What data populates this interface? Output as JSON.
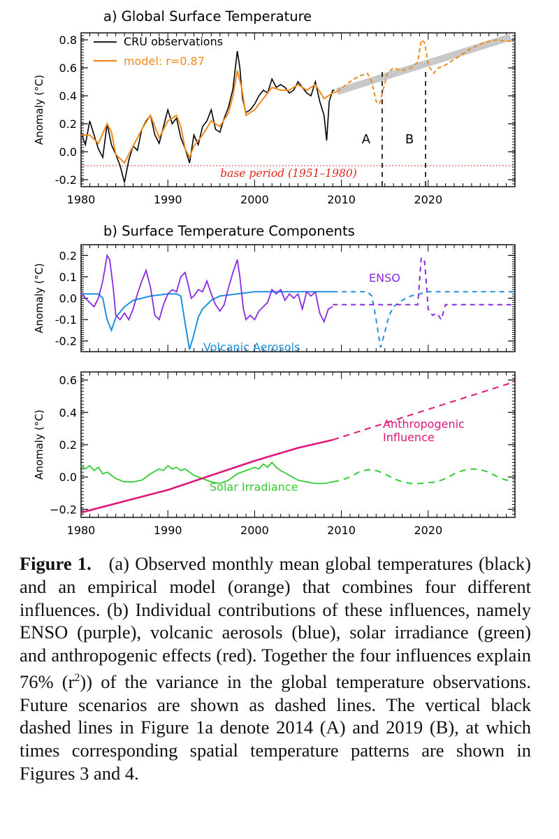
{
  "chart_data": [
    {
      "type": "line",
      "title": "a) Global Surface Temperature",
      "ylabel": "Anomaly (°C)",
      "xlim": [
        1980,
        2030
      ],
      "ylim": [
        -0.25,
        0.85
      ],
      "xticks": [
        1980,
        1990,
        2000,
        2010,
        2020
      ],
      "yticks": [
        -0.2,
        0.0,
        0.2,
        0.4,
        0.6,
        0.8
      ],
      "ytick_labels": [
        "-0.2",
        "0.0",
        "0.2",
        "0.4",
        "0.6",
        "0.8"
      ],
      "legend": {
        "position": "top-left",
        "entries": [
          "CRU observations",
          "model: r=0.87"
        ]
      },
      "colors": {
        "obs": "#000000",
        "model": "#ef8a1a",
        "trend": "#c8c8c8",
        "base": "#e0261c"
      },
      "series": [
        {
          "name": "CRU observations",
          "x": [
            1980,
            1980.5,
            1981,
            1981.5,
            1982,
            1982.5,
            1983,
            1983.5,
            1984,
            1984.5,
            1985,
            1985.5,
            1986,
            1986.5,
            1987,
            1987.5,
            1988,
            1988.5,
            1989,
            1989.5,
            1990,
            1990.5,
            1991,
            1991.5,
            1992,
            1992.5,
            1993,
            1993.5,
            1994,
            1994.5,
            1995,
            1995.5,
            1996,
            1996.5,
            1997,
            1997.5,
            1998,
            1998.3,
            1998.6,
            1999,
            1999.5,
            2000,
            2000.5,
            2001,
            2001.5,
            2002,
            2002.5,
            2003,
            2003.5,
            2004,
            2004.5,
            2005,
            2005.5,
            2006,
            2006.5,
            2007,
            2007.5,
            2008,
            2008.3,
            2008.6,
            2009,
            2009.2
          ],
          "y": [
            0.14,
            0.05,
            0.22,
            0.12,
            0.02,
            -0.04,
            0.2,
            0.05,
            -0.02,
            -0.1,
            -0.22,
            -0.06,
            0.04,
            0.01,
            0.16,
            0.22,
            0.26,
            0.12,
            0.06,
            0.18,
            0.3,
            0.2,
            0.24,
            0.1,
            0.02,
            -0.08,
            0.12,
            0.05,
            0.18,
            0.22,
            0.3,
            0.16,
            0.14,
            0.24,
            0.32,
            0.45,
            0.72,
            0.6,
            0.38,
            0.28,
            0.3,
            0.34,
            0.4,
            0.44,
            0.42,
            0.52,
            0.46,
            0.48,
            0.46,
            0.42,
            0.44,
            0.5,
            0.46,
            0.42,
            0.4,
            0.5,
            0.36,
            0.26,
            0.08,
            0.36,
            0.44,
            0.44
          ]
        },
        {
          "name": "model: r=0.87",
          "x": [
            1980,
            1981,
            1982,
            1983,
            1983.5,
            1984,
            1985,
            1986,
            1987,
            1988,
            1989,
            1990,
            1991,
            1991.5,
            1992,
            1992.5,
            1993,
            1994,
            1995,
            1996,
            1997,
            1997.5,
            1998,
            1998.5,
            1999,
            2000,
            2001,
            2002,
            2003,
            2004,
            2005,
            2006,
            2007,
            2008,
            2009,
            2009.5
          ],
          "y": [
            0.12,
            0.12,
            0.06,
            0.2,
            0.14,
            -0.02,
            -0.08,
            0.04,
            0.16,
            0.26,
            0.1,
            0.22,
            0.26,
            0.18,
            0.02,
            -0.04,
            0.04,
            0.12,
            0.22,
            0.18,
            0.28,
            0.4,
            0.58,
            0.46,
            0.26,
            0.3,
            0.38,
            0.46,
            0.44,
            0.44,
            0.48,
            0.44,
            0.48,
            0.38,
            0.42,
            0.43
          ]
        },
        {
          "name": "model (future scenario)",
          "x": [
            2009.5,
            2011,
            2012,
            2013,
            2013.5,
            2014,
            2014.4,
            2014.8,
            2015.3,
            2016,
            2017,
            2018,
            2018.8,
            2019.2,
            2019.6,
            2020,
            2020.6,
            2021.2,
            2022,
            2023,
            2024,
            2025,
            2026,
            2027,
            2028,
            2029,
            2030
          ],
          "y": [
            0.43,
            0.5,
            0.54,
            0.56,
            0.5,
            0.36,
            0.34,
            0.44,
            0.56,
            0.6,
            0.58,
            0.6,
            0.64,
            0.8,
            0.78,
            0.62,
            0.56,
            0.6,
            0.62,
            0.66,
            0.7,
            0.74,
            0.77,
            0.79,
            0.8,
            0.79,
            0.79
          ]
        },
        {
          "name": "linear trend",
          "x": [
            2009.5,
            2029.5
          ],
          "y": [
            0.43,
            0.82
          ]
        }
      ],
      "reference_line": {
        "y": -0.1,
        "label": "base period (1951–1980)"
      },
      "event_lines": [
        {
          "x": 2014.7,
          "label": "A"
        },
        {
          "x": 2019.7,
          "label": "B"
        }
      ]
    },
    {
      "type": "line",
      "title": "b) Surface Temperature Components",
      "ylabel": "Anomaly (°C)",
      "xlim": [
        1980,
        2030
      ],
      "ylim": [
        -0.25,
        0.25
      ],
      "yticks": [
        -0.2,
        -0.1,
        0.0,
        0.1,
        0.2
      ],
      "ytick_labels": [
        "-0.2",
        "-0.1",
        "0.0",
        "0.1",
        "0.2"
      ],
      "colors": {
        "enso": "#8a2be2",
        "volcanic": "#1e90e0"
      },
      "series": [
        {
          "name": "ENSO",
          "x": [
            1980,
            1980.5,
            1981,
            1981.5,
            1982,
            1982.5,
            1983,
            1983.3,
            1983.7,
            1984,
            1984.5,
            1985,
            1985.5,
            1986,
            1986.5,
            1987,
            1987.5,
            1988,
            1988.5,
            1989,
            1989.5,
            1990,
            1990.5,
            1991,
            1991.5,
            1992,
            1992.3,
            1992.7,
            1993,
            1993.5,
            1994,
            1994.5,
            1995,
            1995.5,
            1996,
            1996.5,
            1997,
            1997.5,
            1998,
            1998.3,
            1998.7,
            1999,
            1999.5,
            2000,
            2000.5,
            2001,
            2001.5,
            2002,
            2002.5,
            2003,
            2003.5,
            2004,
            2004.5,
            2005,
            2005.5,
            2006,
            2006.5,
            2007,
            2007.5,
            2008,
            2008.5,
            2009
          ],
          "y": [
            0.03,
            0.0,
            -0.02,
            -0.04,
            0.0,
            0.08,
            0.2,
            0.18,
            0.05,
            -0.08,
            -0.1,
            -0.07,
            -0.1,
            -0.05,
            0.02,
            0.08,
            0.13,
            0.05,
            -0.08,
            -0.1,
            -0.03,
            0.02,
            0.04,
            0.03,
            0.1,
            0.12,
            0.07,
            0.0,
            0.01,
            0.04,
            0.03,
            0.08,
            0.02,
            -0.03,
            -0.06,
            -0.03,
            0.05,
            0.12,
            0.18,
            0.1,
            -0.05,
            -0.1,
            -0.08,
            -0.1,
            -0.06,
            -0.04,
            -0.02,
            0.04,
            0.02,
            0.04,
            -0.01,
            0.02,
            0.0,
            0.02,
            -0.05,
            0.03,
            0.01,
            0.03,
            -0.07,
            -0.11,
            -0.05,
            -0.04
          ]
        },
        {
          "name": "ENSO (future scenario)",
          "x": [
            2009,
            2018.8,
            2019.2,
            2019.6,
            2020,
            2020.5,
            2021,
            2021.5,
            2022,
            2030
          ],
          "y": [
            -0.03,
            -0.03,
            0.19,
            0.17,
            -0.05,
            -0.08,
            -0.07,
            -0.1,
            -0.03,
            -0.03
          ]
        },
        {
          "name": "Volcanic Aerosols",
          "x": [
            1980,
            1982,
            1982.5,
            1983,
            1983.5,
            1984,
            1985,
            1986,
            1988,
            1990,
            1991,
            1991.5,
            1992,
            1992.5,
            1993,
            1993.5,
            1994,
            1995,
            1996,
            1998,
            2000,
            2005,
            2009
          ],
          "y": [
            0.02,
            0.02,
            0.0,
            -0.1,
            -0.15,
            -0.09,
            -0.04,
            -0.01,
            0.01,
            0.02,
            0.02,
            0.01,
            -0.12,
            -0.24,
            -0.17,
            -0.09,
            -0.05,
            -0.01,
            0.01,
            0.02,
            0.03,
            0.03,
            0.03
          ]
        },
        {
          "name": "Volcanic Aerosols (future scenario)",
          "x": [
            2009,
            2013,
            2013.5,
            2014,
            2014.5,
            2015,
            2015.5,
            2016,
            2017,
            2018,
            2019,
            2020,
            2025,
            2030
          ],
          "y": [
            0.03,
            0.03,
            0.01,
            -0.1,
            -0.23,
            -0.16,
            -0.08,
            -0.04,
            -0.01,
            0.01,
            0.02,
            0.03,
            0.03,
            0.03
          ]
        }
      ],
      "series_labels": [
        "ENSO",
        "Volcanic Aerosols"
      ]
    },
    {
      "type": "line",
      "title": "",
      "ylabel": "Anomaly (°C)",
      "xlim": [
        1980,
        2030
      ],
      "ylim": [
        -0.25,
        0.65
      ],
      "xticks": [
        1980,
        1990,
        2000,
        2010,
        2020
      ],
      "yticks": [
        -0.2,
        0.0,
        0.2,
        0.4,
        0.6
      ],
      "ytick_labels": [
        "−0.2",
        "0.0",
        "0.2",
        "0.4",
        "0.6"
      ],
      "colors": {
        "anthro": "#e0177a",
        "solar": "#33cc33"
      },
      "series": [
        {
          "name": "Anthropogenic Influence",
          "x": [
            1980,
            1985,
            1990,
            1995,
            2000,
            2005,
            2009
          ],
          "y": [
            -0.22,
            -0.15,
            -0.08,
            0.01,
            0.1,
            0.18,
            0.23
          ]
        },
        {
          "name": "Anthropogenic Influence (future scenario)",
          "x": [
            2009,
            2030
          ],
          "y": [
            0.23,
            0.59
          ]
        },
        {
          "name": "Solar Irradiance",
          "x": [
            1980,
            1980.5,
            1981,
            1981.5,
            1982,
            1982.5,
            1983,
            1983.5,
            1984,
            1985,
            1986,
            1987,
            1988,
            1989,
            1989.5,
            1990,
            1990.5,
            1991,
            1991.5,
            1992,
            1993,
            1994,
            1995,
            1996,
            1997,
            1998,
            1999,
            2000,
            2000.5,
            2001,
            2001.5,
            2002,
            2002.5,
            2003,
            2004,
            2005,
            2006,
            2007,
            2008,
            2009
          ],
          "y": [
            0.07,
            0.05,
            0.07,
            0.04,
            0.06,
            0.02,
            0.03,
            0.01,
            -0.01,
            -0.03,
            -0.03,
            -0.02,
            0.02,
            0.05,
            0.04,
            0.07,
            0.05,
            0.06,
            0.04,
            0.05,
            0.01,
            -0.01,
            -0.03,
            -0.04,
            -0.02,
            0.02,
            0.04,
            0.06,
            0.05,
            0.08,
            0.06,
            0.09,
            0.06,
            0.04,
            0.01,
            -0.02,
            -0.03,
            -0.04,
            -0.04,
            -0.03
          ]
        },
        {
          "name": "Solar Irradiance (future scenario)",
          "x": [
            2009,
            2010,
            2011,
            2012,
            2013,
            2014,
            2015,
            2016,
            2017,
            2018,
            2019,
            2020,
            2021,
            2022,
            2023,
            2024,
            2025,
            2026,
            2027,
            2028,
            2029,
            2030
          ],
          "y": [
            -0.03,
            -0.02,
            0.0,
            0.03,
            0.045,
            0.04,
            0.02,
            -0.01,
            -0.03,
            -0.04,
            -0.04,
            -0.035,
            -0.03,
            -0.01,
            0.02,
            0.04,
            0.05,
            0.045,
            0.03,
            0.0,
            -0.02,
            -0.02
          ]
        }
      ],
      "series_labels": [
        "Anthropogenic\nInfluence",
        "Solar Irradiance"
      ]
    }
  ],
  "caption": {
    "label": "Figure 1.",
    "text": "(a) Observed monthly mean global temperatures (black) and an empirical model (orange) that combines four different influences. (b) Individual contributions of these influences, namely ENSO (purple), volcanic aerosols (blue), solar irradiance (green) and anthropogenic effects (red). Together the four influences explain 76% (r2) of the variance in the global temperature observations. Future scenarios are shown as dashed lines. The vertical black dashed lines in Figure 1a denote 2014 (A) and 2019 (B), at which times corresponding spatial temperature patterns are shown in Figures 3 and 4."
  }
}
